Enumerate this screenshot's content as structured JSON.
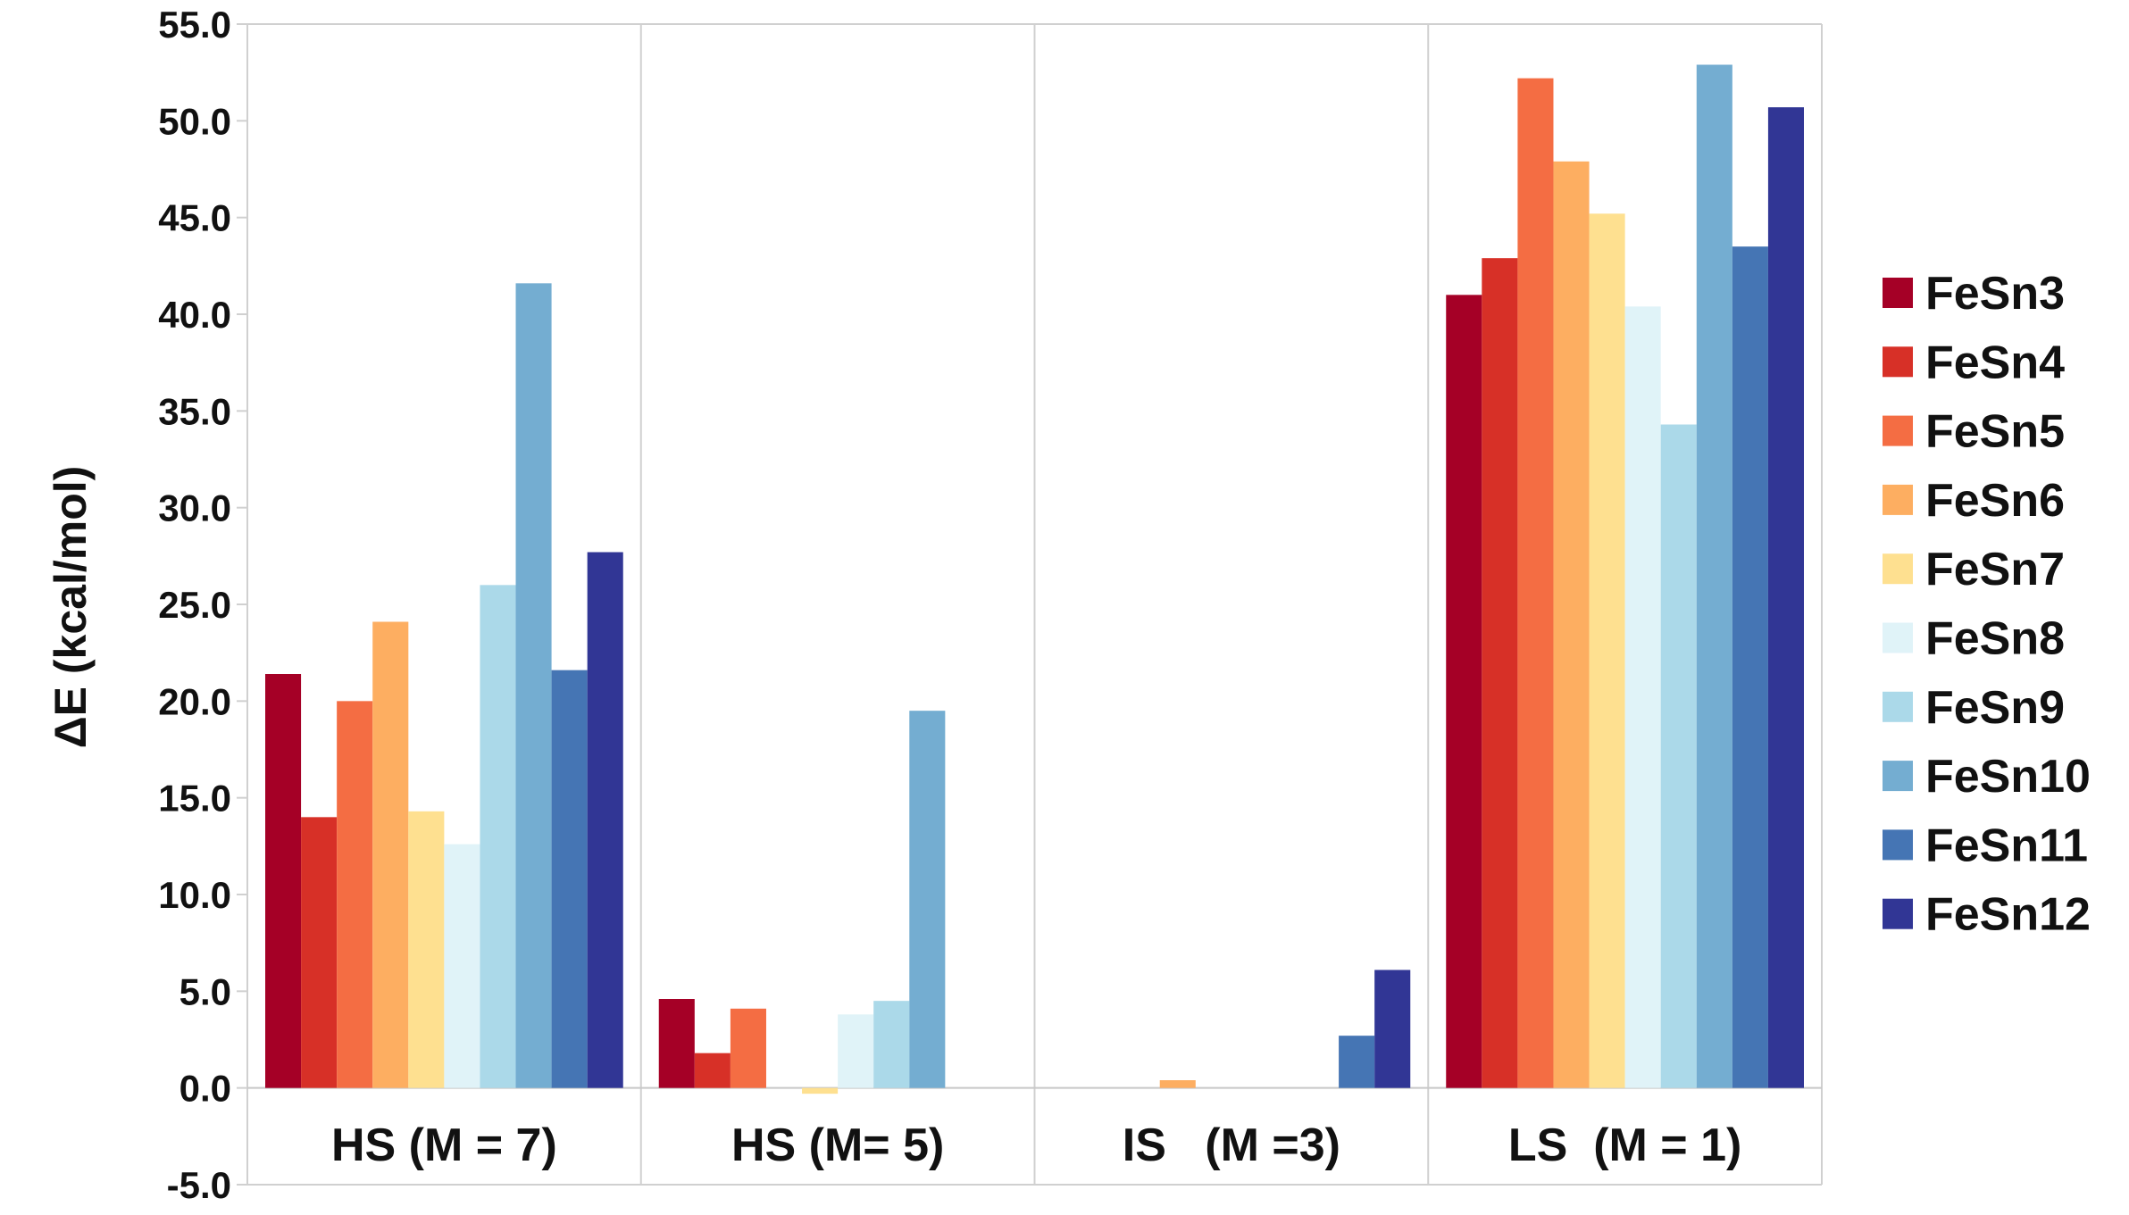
{
  "chart_data": {
    "type": "bar",
    "ylabel": "ΔE (kcal/mol)",
    "ylim": [
      -5.0,
      55.0
    ],
    "ytick_step": 5.0,
    "yticks": [
      "55.0",
      "50.0",
      "45.0",
      "40.0",
      "35.0",
      "30.0",
      "25.0",
      "20.0",
      "15.0",
      "10.0",
      "5.0",
      "0.0",
      "-5.0"
    ],
    "categories": [
      "HS (M = 7)",
      "HS (M= 5)",
      "IS   (M =3)",
      "LS  (M = 1)"
    ],
    "grid": "vertical category separators",
    "legend_position": "right",
    "series": [
      {
        "name": "FeSn3",
        "color": "#a50026",
        "values": [
          21.4,
          4.6,
          0.0,
          41.0
        ]
      },
      {
        "name": "FeSn4",
        "color": "#d73027",
        "values": [
          14.0,
          1.8,
          0.0,
          42.9
        ]
      },
      {
        "name": "FeSn5",
        "color": "#f46d43",
        "values": [
          20.0,
          4.1,
          0.0,
          52.2
        ]
      },
      {
        "name": "FeSn6",
        "color": "#fdae61",
        "values": [
          24.1,
          0.0,
          0.4,
          47.9
        ]
      },
      {
        "name": "FeSn7",
        "color": "#fee090",
        "values": [
          14.3,
          -0.3,
          0.0,
          45.2
        ]
      },
      {
        "name": "FeSn8",
        "color": "#e0f3f8",
        "values": [
          12.6,
          3.8,
          0.0,
          40.4
        ]
      },
      {
        "name": "FeSn9",
        "color": "#abd9e9",
        "values": [
          26.0,
          4.5,
          0.0,
          34.3
        ]
      },
      {
        "name": "FeSn10",
        "color": "#74add1",
        "values": [
          41.6,
          19.5,
          0.0,
          52.9
        ]
      },
      {
        "name": "FeSn11",
        "color": "#4575b4",
        "values": [
          21.6,
          0.0,
          2.7,
          43.5
        ]
      },
      {
        "name": "FeSn12",
        "color": "#313695",
        "values": [
          27.7,
          0.0,
          6.1,
          50.7
        ]
      }
    ]
  }
}
